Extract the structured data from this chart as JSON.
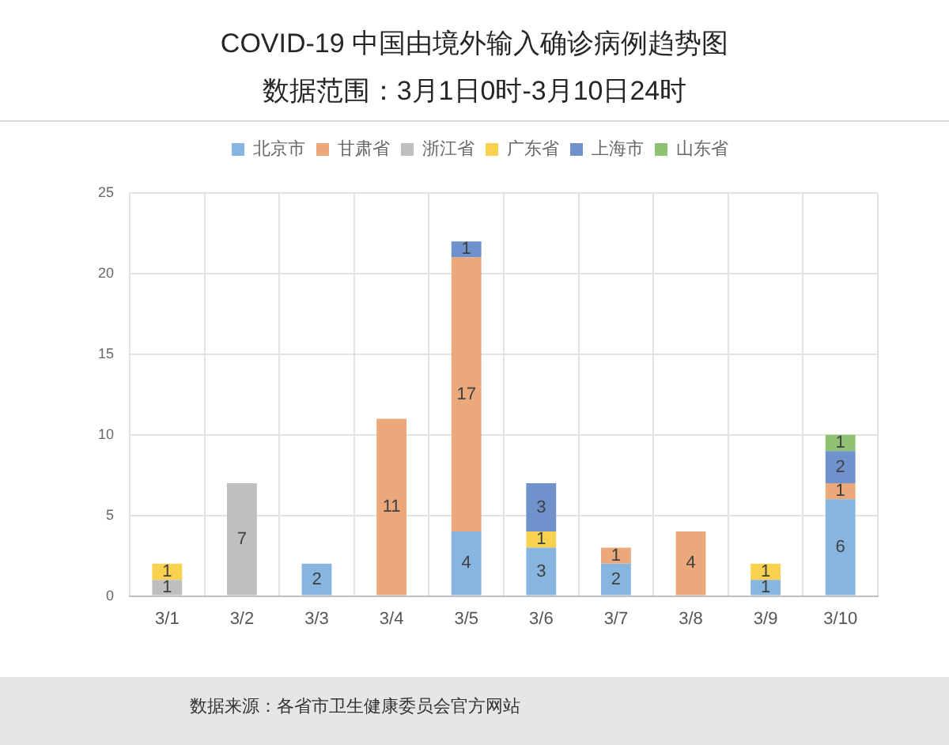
{
  "chart_data": {
    "type": "bar",
    "title": "COVID-19 中国由境外输入确诊病例趋势图",
    "subtitle": "数据范围：3月1日0时-3月10日24时",
    "categories": [
      "3/1",
      "3/2",
      "3/3",
      "3/4",
      "3/5",
      "3/6",
      "3/7",
      "3/8",
      "3/9",
      "3/10"
    ],
    "stacked": true,
    "series": [
      {
        "name": "北京市",
        "color": "#86b5df",
        "values": [
          null,
          null,
          2,
          null,
          4,
          3,
          2,
          null,
          1,
          6
        ]
      },
      {
        "name": "甘肃省",
        "color": "#eba87b",
        "values": [
          null,
          null,
          null,
          11,
          17,
          null,
          1,
          4,
          null,
          1
        ]
      },
      {
        "name": "浙江省",
        "color": "#bfbfbf",
        "values": [
          1,
          7,
          null,
          null,
          null,
          null,
          null,
          null,
          null,
          null
        ]
      },
      {
        "name": "广东省",
        "color": "#f8d24e",
        "values": [
          1,
          null,
          null,
          null,
          null,
          1,
          null,
          null,
          1,
          null
        ]
      },
      {
        "name": "上海市",
        "color": "#6f92cc",
        "values": [
          null,
          null,
          null,
          null,
          1,
          3,
          null,
          null,
          null,
          2
        ]
      },
      {
        "name": "山东省",
        "color": "#8fc173",
        "values": [
          null,
          null,
          null,
          null,
          null,
          null,
          null,
          null,
          null,
          1
        ]
      }
    ],
    "ylim": [
      0,
      25
    ],
    "yticks": [
      0,
      5,
      10,
      15,
      20,
      25
    ],
    "grid": true,
    "legend": "top",
    "data_labels": true,
    "annotations": [
      "数据来源：各省市卫生健康委员会官方网站"
    ]
  }
}
